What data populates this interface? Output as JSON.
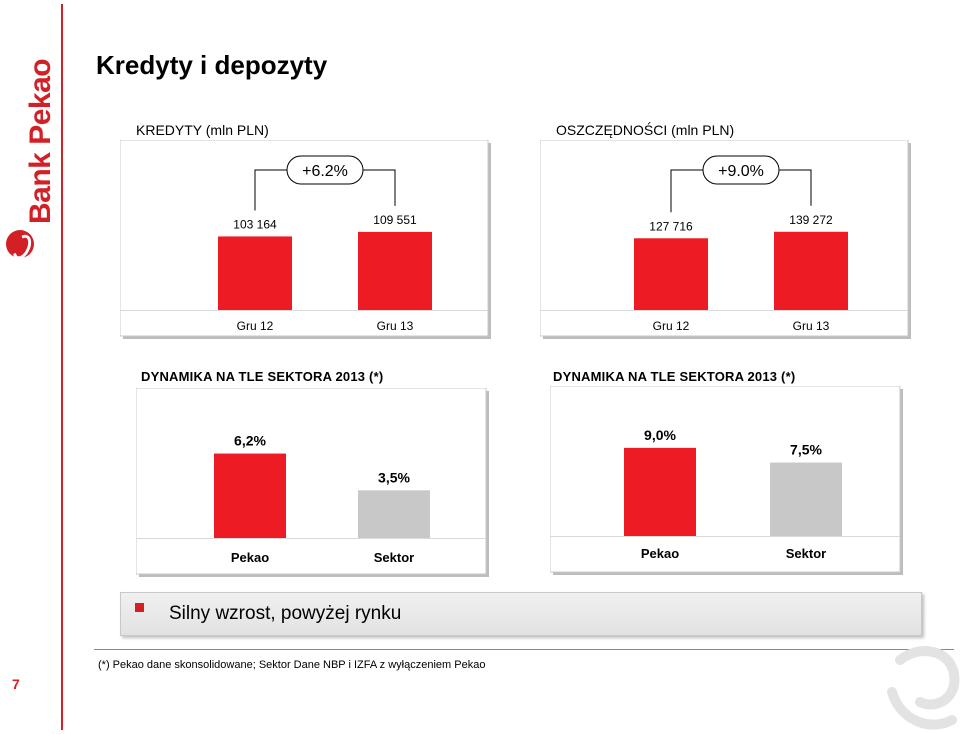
{
  "brand": {
    "logo_text": "Bank Pekao",
    "accent": "#d31f26",
    "grey": "#c8c8c8"
  },
  "title": "Kredyty i depozyty",
  "page_number": "7",
  "sections": {
    "kredyty_label": "KREDYTY (mln PLN)",
    "oszczednosci_label": "OSZCZĘDNOŚCI (mln PLN)",
    "dynamika_left": "DYNAMIKA NA TLE SEKTORA 2013 (*)",
    "dynamika_right": "DYNAMIKA NA TLE SEKTORA 2013 (*)"
  },
  "chart_data": [
    {
      "type": "bar",
      "title": "KREDYTY (mln PLN)",
      "categories": [
        "Gru 12",
        "Gru 13"
      ],
      "values": [
        103164,
        109551
      ],
      "value_labels": [
        "103 164",
        "109 551"
      ],
      "change_label": "+6.2%",
      "colors": [
        "#ed1c24",
        "#ed1c24"
      ],
      "ylim": [
        0,
        115000
      ]
    },
    {
      "type": "bar",
      "title": "OSZCZĘDNOŚCI (mln PLN)",
      "categories": [
        "Gru 12",
        "Gru 13"
      ],
      "values": [
        127716,
        139272
      ],
      "value_labels": [
        "127 716",
        "139 272"
      ],
      "change_label": "+9.0%",
      "colors": [
        "#ed1c24",
        "#ed1c24"
      ],
      "ylim": [
        0,
        146000
      ]
    },
    {
      "type": "bar",
      "title": "DYNAMIKA NA TLE SEKTORA 2013 (*)",
      "categories": [
        "Pekao",
        "Sektor"
      ],
      "values": [
        6.2,
        3.5
      ],
      "value_labels": [
        "6,2%",
        "3,5%"
      ],
      "colors": [
        "#ed1c24",
        "#c8c8c8"
      ],
      "ylim": [
        0,
        6.9
      ]
    },
    {
      "type": "bar",
      "title": "DYNAMIKA NA TLE SEKTORA 2013 (*)",
      "categories": [
        "Pekao",
        "Sektor"
      ],
      "values": [
        9.0,
        7.5
      ],
      "value_labels": [
        "9,0%",
        "7,5%"
      ],
      "colors": [
        "#ed1c24",
        "#c8c8c8"
      ],
      "ylim": [
        0,
        9.6
      ]
    }
  ],
  "bottom_bar": {
    "text": "Silny wzrost, powyżej rynku"
  },
  "footnote": "(*) Pekao dane skonsolidowane; Sektor Dane NBP i IZFA z wyłączeniem Pekao"
}
